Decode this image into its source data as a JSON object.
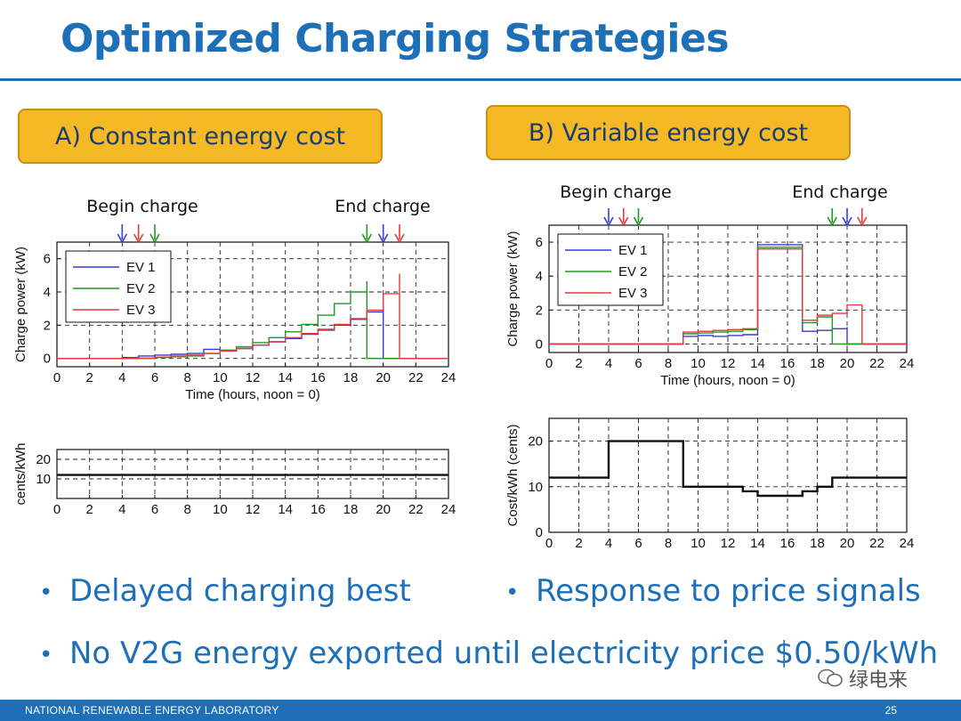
{
  "title": "Optimized Charging Strategies",
  "panel_a": {
    "label": "A) Constant energy cost"
  },
  "panel_b": {
    "label": "B) Variable energy cost"
  },
  "annotations": {
    "begin": "Begin charge",
    "end": "End charge"
  },
  "bullets": [
    "Delayed charging best",
    "Response to price signals",
    "No V2G energy exported until electricity price $0.50/kWh"
  ],
  "footer": {
    "org": "NATIONAL RENEWABLE ENERGY LABORATORY",
    "page": "25"
  },
  "watermark": "绿电来",
  "colors": {
    "ev1": "#3a3ad6",
    "ev2": "#1f9a1f",
    "ev3": "#e23a3a",
    "accent": "#1d70b8",
    "box": "#f6b926"
  },
  "chart_data": [
    {
      "id": "a-power",
      "type": "line",
      "title": "",
      "xlabel": "Time (hours, noon = 0)",
      "ylabel": "Charge power (kW)",
      "xlim": [
        0,
        24
      ],
      "ylim": [
        -0.5,
        7
      ],
      "grid": true,
      "legend": "top-left",
      "xticks": [
        0,
        2,
        4,
        6,
        8,
        10,
        12,
        14,
        16,
        18,
        20,
        22,
        24
      ],
      "yticks": [
        0,
        2,
        4,
        6
      ],
      "arrows": {
        "begin": [
          {
            "x": 4,
            "series": "EV 1"
          },
          {
            "x": 5,
            "series": "EV 3"
          },
          {
            "x": 6,
            "series": "EV 2"
          }
        ],
        "end": [
          {
            "x": 19,
            "series": "EV 2"
          },
          {
            "x": 20,
            "series": "EV 1"
          },
          {
            "x": 21,
            "series": "EV 3"
          }
        ]
      },
      "series": [
        {
          "name": "EV 1",
          "x": [
            0,
            4,
            5,
            6,
            7,
            8,
            9,
            10,
            11,
            12,
            13,
            14,
            15,
            16,
            17,
            18,
            19,
            20,
            20,
            24
          ],
          "y": [
            0,
            0.05,
            0.15,
            0.2,
            0.25,
            0.3,
            0.55,
            0.45,
            0.6,
            0.8,
            1.0,
            1.2,
            1.45,
            1.7,
            2.0,
            2.35,
            2.8,
            3.3,
            0,
            0
          ]
        },
        {
          "name": "EV 2",
          "x": [
            0,
            6,
            7,
            8,
            9,
            10,
            11,
            12,
            13,
            14,
            15,
            16,
            17,
            18,
            19,
            19,
            24
          ],
          "y": [
            0,
            0.05,
            0.1,
            0.15,
            0.3,
            0.5,
            0.7,
            0.95,
            1.25,
            1.6,
            2.05,
            2.6,
            3.3,
            4.0,
            4.65,
            0,
            0
          ]
        },
        {
          "name": "EV 3",
          "x": [
            0,
            5,
            6,
            7,
            8,
            9,
            10,
            11,
            12,
            13,
            14,
            15,
            16,
            17,
            18,
            19,
            20,
            21,
            21,
            24
          ],
          "y": [
            0,
            0.02,
            0.08,
            0.15,
            0.2,
            0.3,
            0.45,
            0.6,
            0.8,
            1.0,
            1.25,
            1.5,
            1.75,
            2.05,
            2.4,
            2.9,
            3.9,
            5.1,
            0,
            0
          ]
        }
      ]
    },
    {
      "id": "a-cost",
      "type": "line",
      "title": "",
      "xlabel": "",
      "ylabel": "cents/kWh",
      "xlim": [
        0,
        24
      ],
      "ylim": [
        0,
        25
      ],
      "grid": true,
      "xticks": [
        0,
        2,
        4,
        6,
        8,
        10,
        12,
        14,
        16,
        18,
        20,
        22,
        24
      ],
      "yticks": [
        10,
        20
      ],
      "series": [
        {
          "name": "cost",
          "x": [
            0,
            24
          ],
          "y": [
            12,
            12
          ]
        }
      ]
    },
    {
      "id": "b-power",
      "type": "line",
      "title": "",
      "xlabel": "Time (hours, noon = 0)",
      "ylabel": "Charge power (kW)",
      "xlim": [
        0,
        24
      ],
      "ylim": [
        -0.5,
        7
      ],
      "grid": true,
      "legend": "top-left",
      "xticks": [
        0,
        2,
        4,
        6,
        8,
        10,
        12,
        14,
        16,
        18,
        20,
        22,
        24
      ],
      "yticks": [
        0,
        2,
        4,
        6
      ],
      "arrows": {
        "begin": [
          {
            "x": 4,
            "series": "EV 1"
          },
          {
            "x": 5,
            "series": "EV 3"
          },
          {
            "x": 6,
            "series": "EV 2"
          }
        ],
        "end": [
          {
            "x": 19,
            "series": "EV 2"
          },
          {
            "x": 20,
            "series": "EV 1"
          },
          {
            "x": 21,
            "series": "EV 3"
          }
        ]
      },
      "series": [
        {
          "name": "EV 1",
          "x": [
            0,
            9,
            9,
            10,
            11,
            12,
            13,
            14,
            14,
            17,
            17,
            18,
            19,
            20,
            20,
            24
          ],
          "y": [
            0,
            0,
            0.45,
            0.5,
            0.45,
            0.5,
            0.55,
            0.55,
            5.85,
            5.85,
            0.75,
            0.8,
            0.9,
            1.0,
            0,
            0
          ]
        },
        {
          "name": "EV 2",
          "x": [
            0,
            9,
            9,
            10,
            11,
            12,
            13,
            14,
            14,
            17,
            17,
            18,
            19,
            19,
            24
          ],
          "y": [
            0,
            0,
            0.6,
            0.65,
            0.7,
            0.75,
            0.85,
            0.9,
            5.7,
            5.7,
            1.25,
            1.6,
            1.7,
            0,
            0
          ]
        },
        {
          "name": "EV 3",
          "x": [
            0,
            9,
            9,
            10,
            11,
            12,
            13,
            14,
            14,
            17,
            17,
            18,
            19,
            20,
            21,
            21,
            24
          ],
          "y": [
            0,
            0,
            0.7,
            0.75,
            0.8,
            0.85,
            0.9,
            1.0,
            5.6,
            5.6,
            1.4,
            1.7,
            1.8,
            2.3,
            2.3,
            0,
            0
          ]
        }
      ]
    },
    {
      "id": "b-cost",
      "type": "line",
      "title": "",
      "xlabel": "",
      "ylabel": "Cost/kWh (cents)",
      "xlim": [
        0,
        24
      ],
      "ylim": [
        0,
        25
      ],
      "grid": true,
      "xticks": [
        0,
        2,
        4,
        6,
        8,
        10,
        12,
        14,
        16,
        18,
        20,
        22,
        24
      ],
      "yticks": [
        0,
        10,
        20
      ],
      "series": [
        {
          "name": "cost",
          "x": [
            0,
            4,
            4,
            9,
            9,
            12,
            13,
            14,
            16,
            17,
            18,
            19,
            24
          ],
          "y": [
            12,
            12,
            20,
            20,
            10,
            10,
            9,
            8,
            8,
            9,
            10,
            12,
            12
          ]
        }
      ]
    }
  ]
}
